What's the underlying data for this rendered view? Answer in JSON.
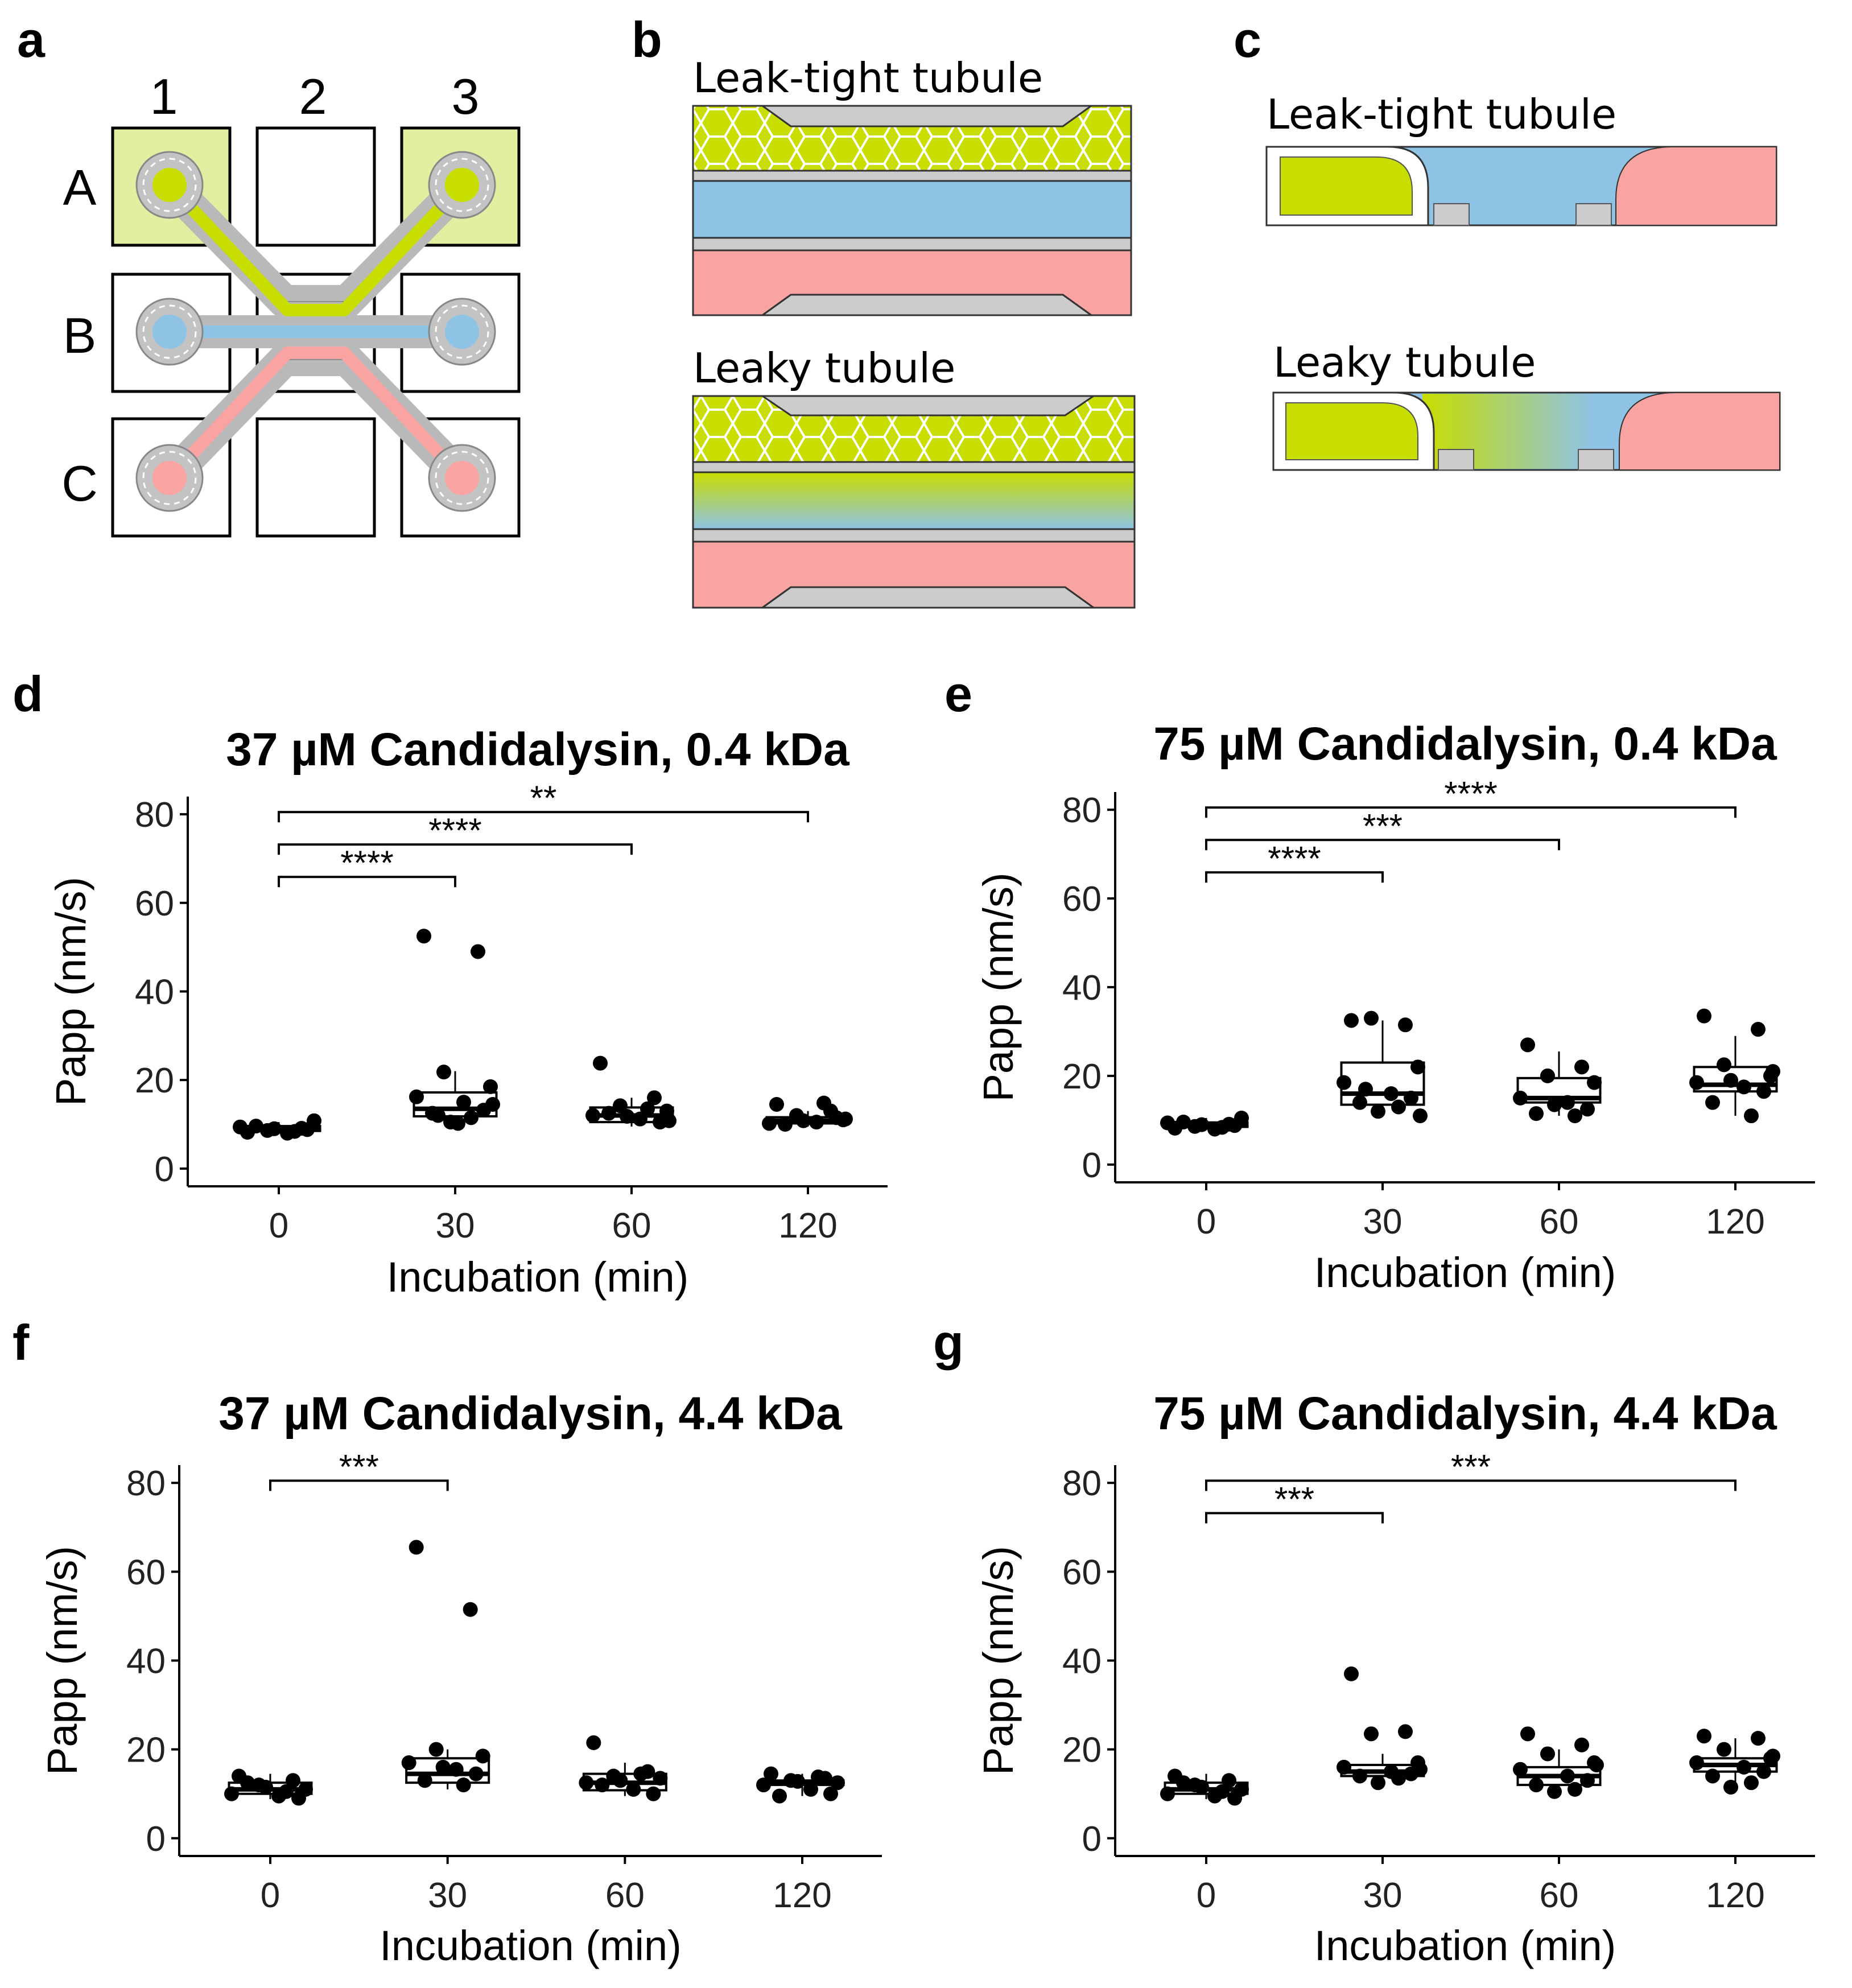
{
  "panel_labels": {
    "a": "a",
    "b": "b",
    "c": "c",
    "d": "d",
    "e": "e",
    "f": "f",
    "g": "g"
  },
  "chip": {
    "columns": [
      "1",
      "2",
      "3"
    ],
    "rows": [
      "A",
      "B",
      "C"
    ],
    "colors": {
      "epithelium": "#c8dd00",
      "lumen": "#8ec3e6",
      "basal": "#f9a3a3",
      "gel": "#cccccc"
    }
  },
  "diagrams": {
    "b_top_title": "Leak-tight tubule",
    "b_bottom_title": "Leaky tubule",
    "c_top_title": "Leak-tight tubule",
    "c_bottom_title": "Leaky tubule"
  },
  "chart_data": [
    {
      "type": "box",
      "panel": "d",
      "title": "37 µM Candidalysin, 0.4 kDa",
      "xlabel": "Incubation (min)",
      "ylabel": "Papp (nm/s)",
      "categories": [
        "0",
        "30",
        "60",
        "120"
      ],
      "yticks": [
        "0",
        "20",
        "40",
        "60",
        "80"
      ],
      "ylim": [
        -4,
        84
      ],
      "boxes": [
        {
          "q1": 8.5,
          "median": 9.0,
          "q3": 9.6,
          "wlo": 7.8,
          "whi": 10.5
        },
        {
          "q1": 11.8,
          "median": 13.5,
          "q3": 17.2,
          "wlo": 9.5,
          "whi": 22.0
        },
        {
          "q1": 10.5,
          "median": 12.0,
          "q3": 13.8,
          "wlo": 9.5,
          "whi": 16.0
        },
        {
          "q1": 10.2,
          "median": 10.8,
          "q3": 11.6,
          "wlo": 9.5,
          "whi": 13.0
        }
      ],
      "points": [
        [
          8.2,
          9.1,
          8.6,
          10.8,
          9.4,
          8.0,
          8.8,
          9.6,
          8.4,
          9.0
        ],
        [
          52.5,
          49.0,
          21.8,
          18.5,
          16.2,
          15.0,
          13.2,
          12.5,
          11.5,
          10.5,
          14.5,
          12.0,
          10.2
        ],
        [
          23.8,
          16.0,
          14.2,
          13.0,
          12.0,
          11.2,
          10.5,
          12.5,
          13.5,
          11.8,
          10.8
        ],
        [
          14.5,
          13.0,
          12.0,
          11.0,
          10.2,
          10.5,
          11.5,
          10.0,
          14.8,
          10.8,
          11.2
        ]
      ],
      "significance": [
        {
          "from": "0",
          "to": "30",
          "label": "****"
        },
        {
          "from": "0",
          "to": "60",
          "label": "****"
        },
        {
          "from": "0",
          "to": "120",
          "label": "**"
        }
      ]
    },
    {
      "type": "box",
      "panel": "e",
      "title": "75 µM Candidalysin, 0.4 kDa",
      "xlabel": "Incubation (min)",
      "ylabel": "Papp (nm/s)",
      "categories": [
        "0",
        "30",
        "60",
        "120"
      ],
      "yticks": [
        "0",
        "20",
        "40",
        "60",
        "80"
      ],
      "ylim": [
        -4,
        84
      ],
      "boxes": [
        {
          "q1": 8.5,
          "median": 9.0,
          "q3": 9.5,
          "wlo": 7.8,
          "whi": 10.5
        },
        {
          "q1": 13.5,
          "median": 16.0,
          "q3": 23.0,
          "wlo": 11.0,
          "whi": 32.5
        },
        {
          "q1": 14.0,
          "median": 15.0,
          "q3": 19.5,
          "wlo": 11.0,
          "whi": 25.5
        },
        {
          "q1": 16.5,
          "median": 18.0,
          "q3": 22.0,
          "wlo": 11.0,
          "whi": 29.0
        }
      ],
      "points": [
        [
          8.2,
          9.1,
          8.6,
          10.5,
          9.4,
          8.0,
          8.8,
          9.6,
          8.4,
          9.0
        ],
        [
          32.5,
          31.5,
          33.0,
          22.0,
          18.5,
          16.0,
          15.0,
          14.0,
          13.0,
          12.0,
          11.0,
          17.0
        ],
        [
          27.0,
          22.0,
          20.0,
          18.5,
          15.0,
          14.0,
          12.5,
          11.5,
          11.0,
          13.5
        ],
        [
          33.5,
          30.5,
          22.5,
          20.0,
          18.5,
          17.5,
          16.5,
          14.0,
          11.0,
          19.0,
          21.0
        ]
      ],
      "significance": [
        {
          "from": "0",
          "to": "30",
          "label": "****"
        },
        {
          "from": "0",
          "to": "60",
          "label": "***"
        },
        {
          "from": "0",
          "to": "120",
          "label": "****"
        }
      ]
    },
    {
      "type": "box",
      "panel": "f",
      "title": "37 µM Candidalysin, 4.4 kDa",
      "xlabel": "Incubation (min)",
      "ylabel": "Papp (nm/s)",
      "categories": [
        "0",
        "30",
        "60",
        "120"
      ],
      "yticks": [
        "0",
        "20",
        "40",
        "60",
        "80"
      ],
      "ylim": [
        -4,
        84
      ],
      "boxes": [
        {
          "q1": 10.0,
          "median": 11.0,
          "q3": 12.5,
          "wlo": 8.8,
          "whi": 14.5
        },
        {
          "q1": 12.5,
          "median": 14.5,
          "q3": 18.0,
          "wlo": 11.0,
          "whi": 20.0
        },
        {
          "q1": 10.8,
          "median": 12.5,
          "q3": 14.5,
          "wlo": 9.5,
          "whi": 17.0
        },
        {
          "q1": 12.0,
          "median": 12.5,
          "q3": 13.0,
          "wlo": 9.5,
          "whi": 14.5
        }
      ],
      "points": [
        [
          14.0,
          13.0,
          12.0,
          11.0,
          10.0,
          9.5,
          9.0,
          12.5,
          10.5,
          11.5
        ],
        [
          65.5,
          51.5,
          20.0,
          18.5,
          17.0,
          15.5,
          14.5,
          13.0,
          12.0,
          16.0
        ],
        [
          21.5,
          15.0,
          14.0,
          13.5,
          12.5,
          11.0,
          10.0,
          12.0,
          14.5,
          13.0
        ],
        [
          14.5,
          13.5,
          13.0,
          12.5,
          12.0,
          11.0,
          10.0,
          9.5,
          13.8,
          12.8
        ]
      ],
      "significance": [
        {
          "from": "0",
          "to": "30",
          "label": "***"
        }
      ]
    },
    {
      "type": "box",
      "panel": "g",
      "title": "75 µM Candidalysin, 4.4 kDa",
      "xlabel": "Incubation (min)",
      "ylabel": "Papp (nm/s)",
      "categories": [
        "0",
        "30",
        "60",
        "120"
      ],
      "yticks": [
        "0",
        "20",
        "40",
        "60",
        "80"
      ],
      "ylim": [
        -4,
        84
      ],
      "boxes": [
        {
          "q1": 10.0,
          "median": 11.0,
          "q3": 12.5,
          "wlo": 8.8,
          "whi": 14.5
        },
        {
          "q1": 14.0,
          "median": 15.0,
          "q3": 16.5,
          "wlo": 12.0,
          "whi": 19.0
        },
        {
          "q1": 12.0,
          "median": 14.0,
          "q3": 16.0,
          "wlo": 10.5,
          "whi": 20.0
        },
        {
          "q1": 15.0,
          "median": 16.5,
          "q3": 18.0,
          "wlo": 12.0,
          "whi": 22.5
        }
      ],
      "points": [
        [
          14.0,
          13.0,
          12.0,
          11.0,
          10.0,
          9.5,
          9.0,
          12.5,
          10.5,
          11.5
        ],
        [
          37.0,
          24.0,
          23.5,
          17.0,
          16.0,
          15.0,
          14.5,
          14.0,
          13.5,
          12.5,
          15.5
        ],
        [
          23.5,
          21.0,
          19.0,
          17.0,
          15.5,
          14.0,
          13.0,
          12.0,
          11.0,
          10.5,
          16.5
        ],
        [
          23.0,
          22.5,
          20.0,
          18.0,
          17.0,
          16.0,
          15.0,
          14.0,
          12.5,
          11.5,
          18.5
        ]
      ],
      "significance": [
        {
          "from": "0",
          "to": "30",
          "label": "***"
        },
        {
          "from": "0",
          "to": "120",
          "label": "***"
        }
      ]
    }
  ]
}
